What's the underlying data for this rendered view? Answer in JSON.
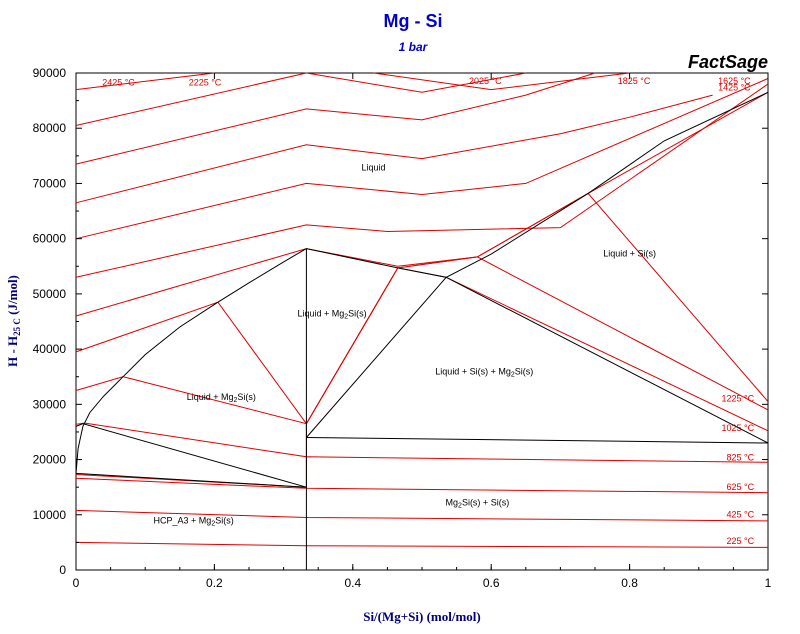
{
  "chart_data": {
    "type": "line",
    "title": "Mg - Si",
    "subtitle": "1 bar",
    "brand": "FactSage",
    "xlabel": {
      "main": "Si/(Mg+Si) (mol/mol)"
    },
    "ylabel": {
      "pre": "H - H",
      "sub": "25 C",
      "post": " (J/mol)"
    },
    "xlim": [
      0,
      1
    ],
    "ylim": [
      0,
      90000
    ],
    "xticks": [
      0,
      0.2,
      0.4,
      0.6,
      0.8,
      1
    ],
    "xtick_labels": [
      "0",
      "0.2",
      "0.4",
      "0.6",
      "0.8",
      "1"
    ],
    "yticks": [
      0,
      10000,
      20000,
      30000,
      40000,
      50000,
      60000,
      70000,
      80000,
      90000
    ],
    "ytick_labels": [
      "0",
      "10000",
      "20000",
      "30000",
      "40000",
      "50000",
      "60000",
      "70000",
      "80000",
      "90000"
    ],
    "grid": false,
    "colors": {
      "phase_boundary": "#000000",
      "isotherm": "#e00000",
      "title": "#0000d0",
      "axis_label": "#00007a"
    },
    "phase_boundaries": [
      {
        "name": "liquidus-mg-rich",
        "points": [
          [
            0.0,
            17500
          ],
          [
            0.003,
            22000
          ],
          [
            0.01,
            26000
          ],
          [
            0.02,
            28500
          ],
          [
            0.04,
            31500
          ],
          [
            0.068,
            35000
          ],
          [
            0.1,
            39000
          ],
          [
            0.15,
            44000
          ],
          [
            0.205,
            48500
          ],
          [
            0.25,
            52000
          ],
          [
            0.3,
            55800
          ],
          [
            0.333,
            58200
          ]
        ]
      },
      {
        "name": "liquidus-si-rich",
        "points": [
          [
            0.333,
            58200
          ],
          [
            0.465,
            54700
          ],
          [
            0.535,
            53000
          ],
          [
            0.6,
            57200
          ],
          [
            0.74,
            68200
          ],
          [
            0.85,
            77700
          ],
          [
            1.0,
            86500
          ]
        ]
      },
      {
        "name": "three-phase-triangle-left",
        "points": [
          [
            0.333,
            24000
          ],
          [
            0.535,
            53000
          ]
        ]
      },
      {
        "name": "three-phase-triangle-right",
        "points": [
          [
            0.535,
            53000
          ],
          [
            1.0,
            23000
          ]
        ]
      },
      {
        "name": "eutectic-si-rich",
        "points": [
          [
            0.333,
            24000
          ],
          [
            1.0,
            23000
          ]
        ]
      },
      {
        "name": "liquid-hcp-boundary-upper",
        "points": [
          [
            0.0,
            26000
          ],
          [
            0.01,
            26500
          ],
          [
            0.333,
            15000
          ]
        ]
      },
      {
        "name": "liquid-hcp-boundary-lower",
        "points": [
          [
            0.0,
            17500
          ],
          [
            0.333,
            15000
          ]
        ]
      },
      {
        "name": "mg2si-line-compound",
        "points": [
          [
            0.333,
            0
          ],
          [
            0.333,
            58200
          ]
        ]
      }
    ],
    "isotherms": [
      {
        "name": "225 °C",
        "label": "225 °C",
        "points": [
          [
            0.0,
            5000
          ],
          [
            0.333,
            4400
          ],
          [
            1.0,
            4100
          ]
        ]
      },
      {
        "name": "425 °C",
        "label": "425 °C",
        "points": [
          [
            0.0,
            10800
          ],
          [
            0.333,
            9500
          ],
          [
            1.0,
            8900
          ]
        ]
      },
      {
        "name": "625 °C",
        "label": "625 °C",
        "points": [
          [
            0.0,
            16600
          ],
          [
            0.333,
            14800
          ],
          [
            1.0,
            14000
          ]
        ]
      },
      {
        "name": "825 °C",
        "label": "825 °C",
        "points": [
          [
            0.0,
            17300
          ],
          [
            0.333,
            15000
          ],
          [
            0.333,
            20500
          ],
          [
            1.0,
            19500
          ]
        ]
      },
      {
        "name": "1025 °C",
        "label": "1025 °C",
        "points": [
          [
            0.0,
            26400
          ],
          [
            0.013,
            26600
          ],
          [
            0.333,
            20500
          ],
          [
            0.333,
            26500
          ],
          [
            0.465,
            54700
          ],
          [
            0.535,
            53000
          ],
          [
            1.0,
            25200
          ]
        ]
      },
      {
        "name": "1225 °C",
        "label": "1225 °C",
        "points": [
          [
            0.0,
            32500
          ],
          [
            0.068,
            35000
          ],
          [
            0.333,
            26500
          ],
          [
            0.465,
            54700
          ],
          [
            0.58,
            56700
          ],
          [
            1.0,
            29000
          ]
        ]
      },
      {
        "name": "1425 °C",
        "label": "1425 °C",
        "points": [
          [
            0.0,
            39500
          ],
          [
            0.205,
            48500
          ],
          [
            0.333,
            26500
          ],
          [
            0.465,
            54700
          ],
          [
            0.58,
            56700
          ],
          [
            0.74,
            68200
          ],
          [
            1.0,
            30500
          ]
        ]
      },
      {
        "name": "1625 °C",
        "label": "1625 °C",
        "points": [
          [
            0.0,
            46000
          ],
          [
            0.333,
            58200
          ],
          [
            0.465,
            55000
          ],
          [
            0.58,
            56700
          ],
          [
            0.74,
            68200
          ],
          [
            1.0,
            86500
          ]
        ]
      },
      {
        "name": "1825 °C",
        "label": "1825 °C",
        "points": [
          [
            0.0,
            53000
          ],
          [
            0.333,
            62500
          ],
          [
            0.45,
            61300
          ],
          [
            0.7,
            62000
          ],
          [
            1.0,
            88000
          ]
        ]
      },
      {
        "name": "2025 °C",
        "label": "2025 °C",
        "points": [
          [
            0.0,
            60000
          ],
          [
            0.333,
            70000
          ],
          [
            0.5,
            68000
          ],
          [
            0.65,
            70000
          ],
          [
            1.0,
            89000
          ]
        ]
      },
      {
        "name": "2225 °C",
        "label": "2225 °C",
        "points": [
          [
            0.0,
            66500
          ],
          [
            0.333,
            77000
          ],
          [
            0.5,
            74500
          ],
          [
            0.7,
            79000
          ],
          [
            0.8,
            82000
          ],
          [
            0.92,
            86000
          ]
        ]
      },
      {
        "name": "2425 °C",
        "label": "2425 °C",
        "points": [
          [
            0.0,
            73500
          ],
          [
            0.333,
            83500
          ],
          [
            0.5,
            81500
          ],
          [
            0.65,
            86000
          ],
          [
            0.75,
            90000
          ]
        ]
      },
      {
        "name": "2625 °C",
        "label": "",
        "points": [
          [
            0.0,
            80500
          ],
          [
            0.333,
            90000
          ]
        ]
      },
      {
        "name": "2825 °C",
        "label": "",
        "points": [
          [
            0.0,
            87000
          ],
          [
            0.2,
            90000
          ]
        ]
      },
      {
        "name": "3025 °C",
        "label": "",
        "points": [
          [
            0.0,
            90000
          ],
          [
            0.005,
            90000
          ]
        ]
      },
      {
        "name": "upper-1",
        "label": "",
        "points": [
          [
            0.43,
            90000
          ],
          [
            0.6,
            87000
          ],
          [
            0.8,
            90000
          ]
        ]
      },
      {
        "name": "upper-2",
        "label": "",
        "points": [
          [
            0.333,
            90000
          ],
          [
            0.5,
            86500
          ],
          [
            0.65,
            90000
          ]
        ]
      }
    ],
    "isotherm_labels": [
      {
        "text": "2425 °C",
        "x": 0.085,
        "y": 87700
      },
      {
        "text": "2225 °C",
        "x": 0.21,
        "y": 87700
      },
      {
        "text": "2025 °C",
        "x": 0.615,
        "y": 88000
      },
      {
        "text": "1825 °C",
        "x": 0.83,
        "y": 88000
      },
      {
        "text": "1625 °C",
        "x": 0.975,
        "y": 88000
      },
      {
        "text": "1425 °C",
        "x": 0.975,
        "y": 86800
      },
      {
        "text": "1225 °C",
        "x": 0.98,
        "y": 30500
      },
      {
        "text": "1025 °C",
        "x": 0.98,
        "y": 25200
      },
      {
        "text": "825 °C",
        "x": 0.98,
        "y": 19800
      },
      {
        "text": "625 °C",
        "x": 0.98,
        "y": 14500
      },
      {
        "text": "425 °C",
        "x": 0.98,
        "y": 9500
      },
      {
        "text": "225 °C",
        "x": 0.98,
        "y": 4700
      }
    ],
    "region_labels": [
      {
        "main": "Liquid",
        "sub": "",
        "tail": "",
        "x": 0.43,
        "y": 72300
      },
      {
        "main": "Liquid + Si(s)",
        "sub": "",
        "tail": "",
        "x": 0.8,
        "y": 56800
      },
      {
        "main": "Liquid + Mg",
        "sub": "2",
        "tail": "Si(s)",
        "x": 0.37,
        "y": 45900
      },
      {
        "main": "Liquid + Si(s) + Mg",
        "sub": "2",
        "tail": "Si(s)",
        "x": 0.59,
        "y": 35400
      },
      {
        "main": "Liquid + Mg",
        "sub": "2",
        "tail": "Si(s)",
        "x": 0.21,
        "y": 30800
      },
      {
        "main": "Mg",
        "sub": "2",
        "tail": "Si(s) + Si(s)",
        "x": 0.58,
        "y": 11700
      },
      {
        "main": "HCP_A3 + Mg",
        "sub": "2",
        "tail": "Si(s)",
        "x": 0.17,
        "y": 8400
      }
    ]
  }
}
